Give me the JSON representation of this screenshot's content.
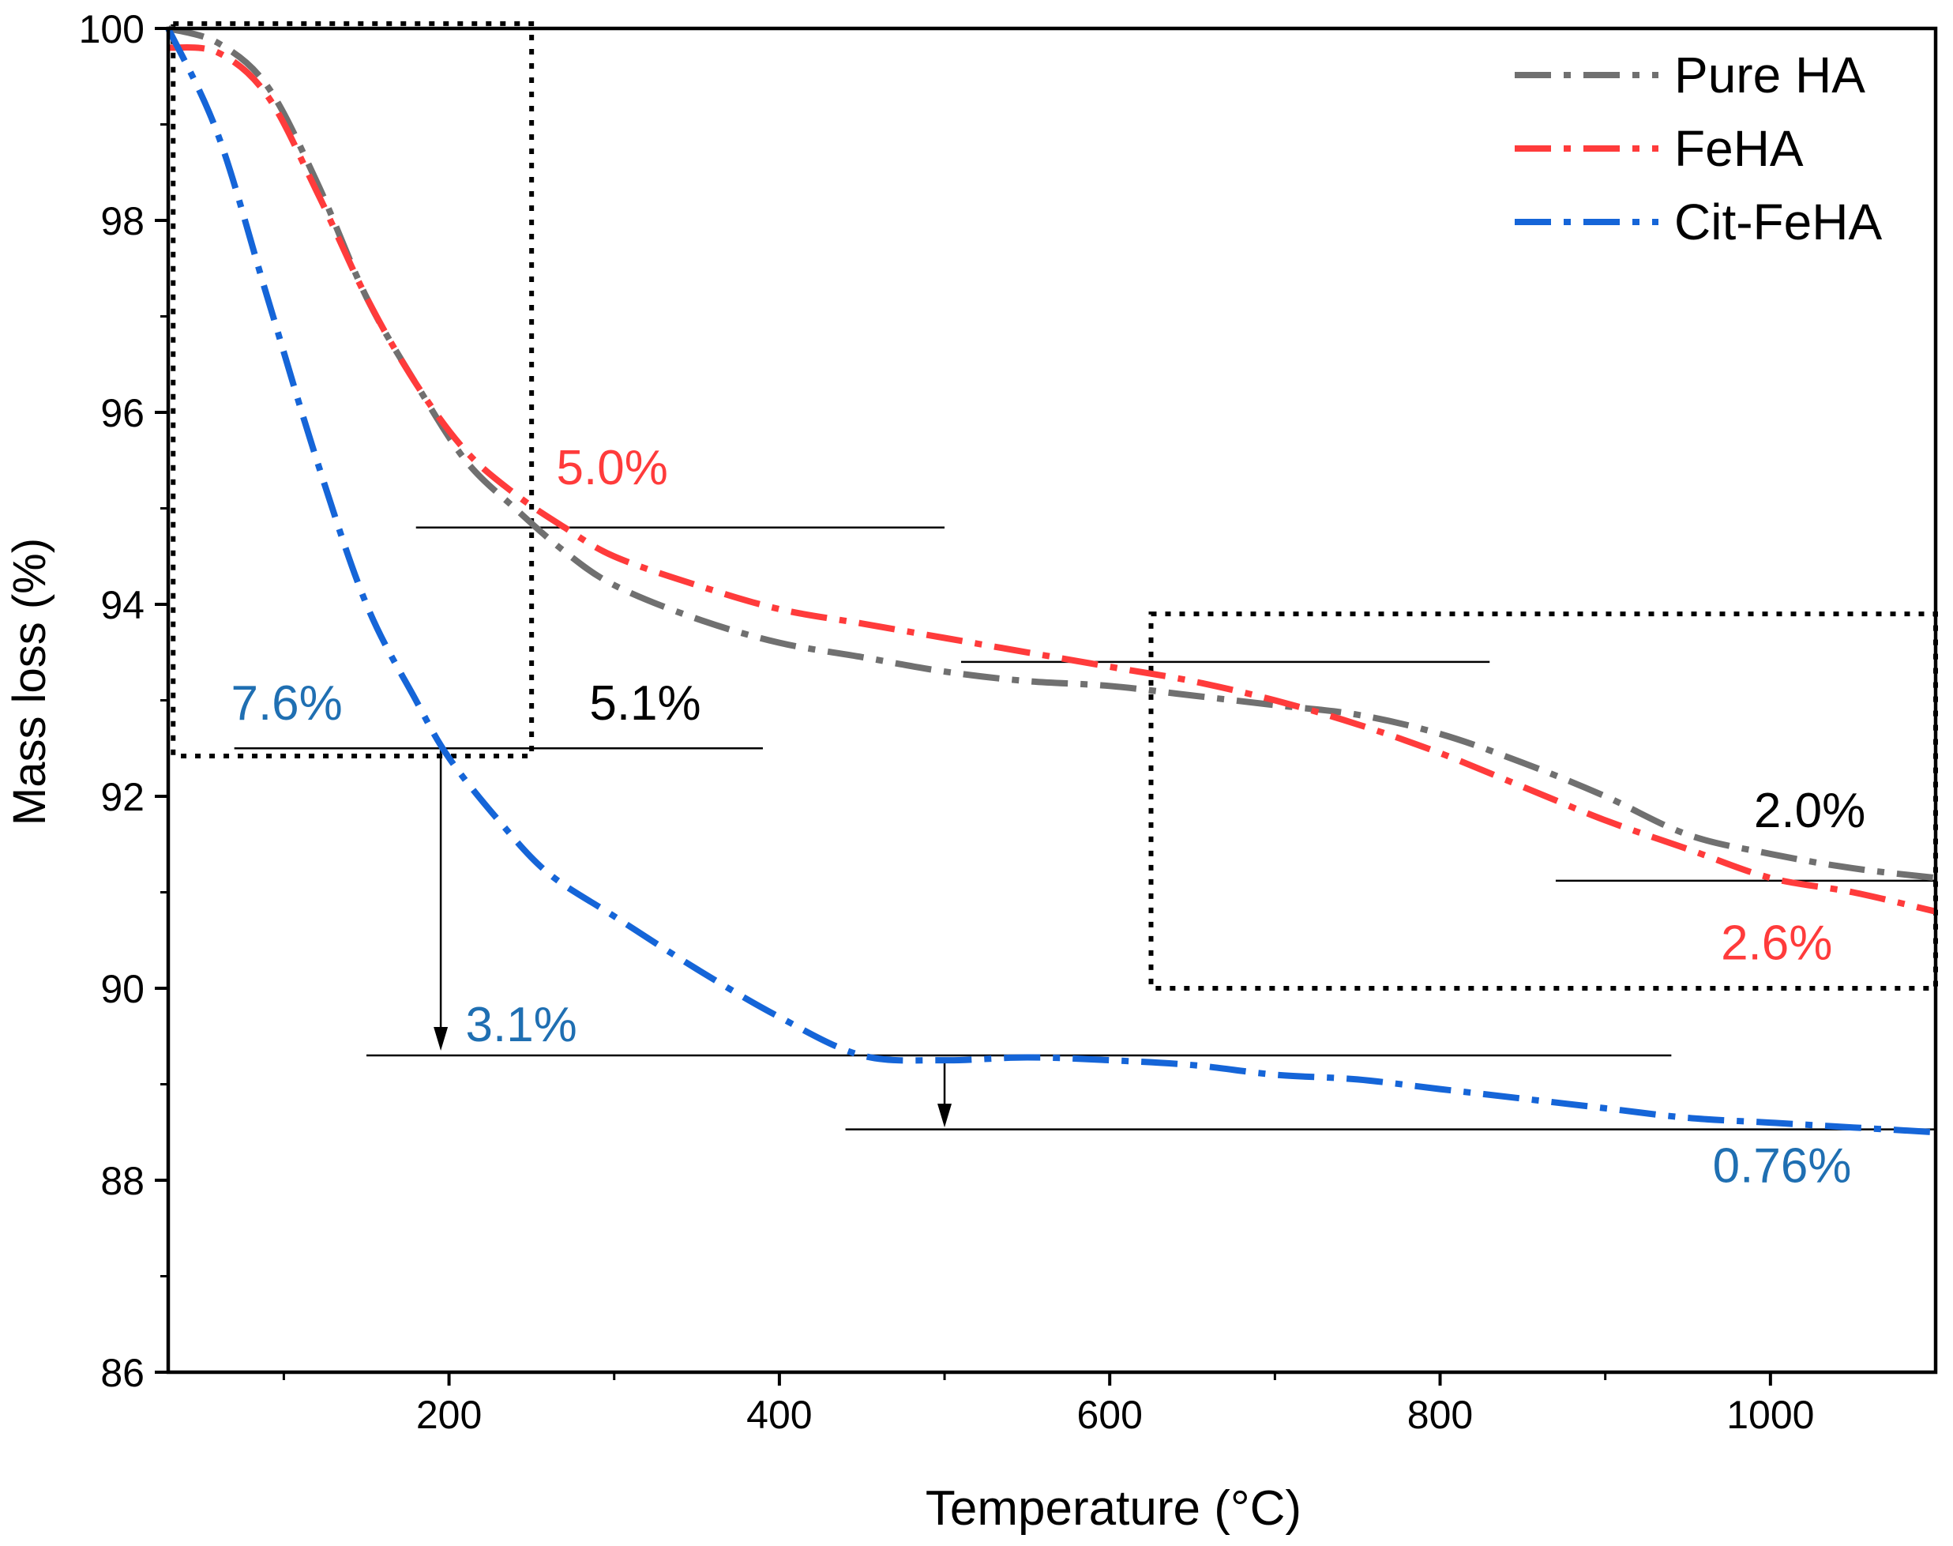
{
  "chart_data": {
    "type": "line",
    "title": "",
    "xlabel": "Temperature (°C)",
    "ylabel": "Mass loss (%)",
    "xlim": [
      30,
      1100
    ],
    "ylim": [
      86,
      100
    ],
    "x_ticks": [
      200,
      400,
      600,
      800,
      1000
    ],
    "y_ticks": [
      86,
      88,
      90,
      92,
      94,
      96,
      98,
      100
    ],
    "grid": false,
    "legend_position": "top-right",
    "colors": {
      "pure_ha": "#707070",
      "feha": "#ff3b3b",
      "cit_feha": "#1565d8",
      "blue_label": "#1f6fb2",
      "black": "#000000"
    },
    "series": [
      {
        "name": "Pure HA",
        "key": "pure_ha",
        "x": [
          30,
          60,
          90,
          120,
          150,
          180,
          210,
          240,
          270,
          300,
          350,
          400,
          450,
          500,
          550,
          600,
          650,
          700,
          750,
          800,
          850,
          900,
          950,
          1000,
          1050,
          1100
        ],
        "y": [
          100,
          99.85,
          99.4,
          98.4,
          97.2,
          96.3,
          95.5,
          95.0,
          94.55,
          94.2,
          93.85,
          93.6,
          93.45,
          93.3,
          93.2,
          93.15,
          93.05,
          92.95,
          92.85,
          92.65,
          92.35,
          92.0,
          91.6,
          91.4,
          91.25,
          91.15
        ]
      },
      {
        "name": "FeHA",
        "key": "feha",
        "x": [
          30,
          60,
          90,
          120,
          150,
          180,
          210,
          240,
          270,
          300,
          350,
          400,
          450,
          500,
          550,
          600,
          650,
          700,
          750,
          800,
          850,
          900,
          950,
          1000,
          1050,
          1100
        ],
        "y": [
          99.8,
          99.75,
          99.3,
          98.3,
          97.2,
          96.3,
          95.6,
          95.15,
          94.8,
          94.5,
          94.2,
          93.95,
          93.8,
          93.65,
          93.5,
          93.35,
          93.2,
          93.0,
          92.75,
          92.45,
          92.1,
          91.75,
          91.45,
          91.15,
          91.0,
          90.8
        ]
      },
      {
        "name": "Cit-FeHA",
        "key": "cit_feha",
        "x": [
          30,
          60,
          90,
          120,
          150,
          180,
          200,
          230,
          260,
          300,
          350,
          400,
          450,
          500,
          550,
          600,
          650,
          700,
          750,
          800,
          850,
          900,
          950,
          1000,
          1050,
          1100
        ],
        "y": [
          100,
          98.9,
          97.2,
          95.5,
          94.0,
          93.0,
          92.4,
          91.75,
          91.2,
          90.75,
          90.2,
          89.7,
          89.3,
          89.25,
          89.28,
          89.25,
          89.2,
          89.1,
          89.05,
          88.95,
          88.85,
          88.75,
          88.65,
          88.6,
          88.55,
          88.5
        ]
      }
    ],
    "annotations": [
      {
        "text": "5.0%",
        "x": 265,
        "y": 95.25,
        "color": "feha"
      },
      {
        "text": "5.1%",
        "x": 285,
        "y": 92.8,
        "color": "black"
      },
      {
        "text": "7.6%",
        "x": 68,
        "y": 92.8,
        "color": "blue_label"
      },
      {
        "text": "3.1%",
        "x": 210,
        "y": 89.45,
        "color": "blue_label"
      },
      {
        "text": "2.0%",
        "x": 990,
        "y": 91.68,
        "color": "black"
      },
      {
        "text": "2.6%",
        "x": 970,
        "y": 90.3,
        "color": "feha"
      },
      {
        "text": "0.76%",
        "x": 965,
        "y": 87.98,
        "color": "blue_label"
      }
    ],
    "reference_lines": [
      {
        "x1": 180,
        "x2": 500,
        "y": 94.8
      },
      {
        "x1": 70,
        "x2": 390,
        "y": 92.5
      },
      {
        "x1": 150,
        "x2": 940,
        "y": 89.3
      },
      {
        "x1": 440,
        "x2": 1100,
        "y": 88.53
      },
      {
        "x1": 510,
        "x2": 830,
        "y": 93.4
      },
      {
        "x1": 870,
        "x2": 1100,
        "y": 91.12
      }
    ],
    "arrows": [
      {
        "x": 195,
        "y_from": 92.5,
        "y_to": 89.35
      },
      {
        "x": 500,
        "y_from": 89.25,
        "y_to": 88.55
      }
    ],
    "highlight_boxes": [
      {
        "x1": 33,
        "x2": 250,
        "y1": 92.42,
        "y2": 100.05
      },
      {
        "x1": 625,
        "x2": 1100,
        "y1": 90.0,
        "y2": 93.9
      }
    ]
  }
}
